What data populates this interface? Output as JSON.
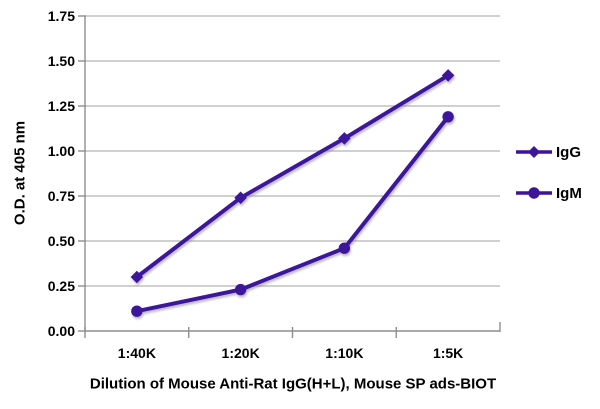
{
  "chart_data": {
    "type": "line",
    "title": "",
    "xlabel": "Dilution of Mouse Anti-Rat IgG(H+L), Mouse SP ads-BIOT",
    "ylabel": "O.D. at 405 nm",
    "categories": [
      "1:40K",
      "1:20K",
      "1:10K",
      "1:5K"
    ],
    "series": [
      {
        "name": "IgG",
        "marker": "diamond",
        "values": [
          0.3,
          0.74,
          1.07,
          1.42
        ]
      },
      {
        "name": "IgM",
        "marker": "circle",
        "values": [
          0.11,
          0.23,
          0.46,
          1.19
        ]
      }
    ],
    "ylim": [
      0,
      1.75
    ],
    "y_ticks": [
      "0.00",
      "0.25",
      "0.50",
      "0.75",
      "1.00",
      "1.25",
      "1.50",
      "1.75"
    ],
    "grid": "horizontal",
    "legend_position": "right",
    "colors": {
      "series": "#3E149B",
      "grid": "#b3b3b3",
      "axis": "#8e8e8e",
      "text": "#000000",
      "background": "#ffffff",
      "shadow": "#8a7f90"
    }
  }
}
